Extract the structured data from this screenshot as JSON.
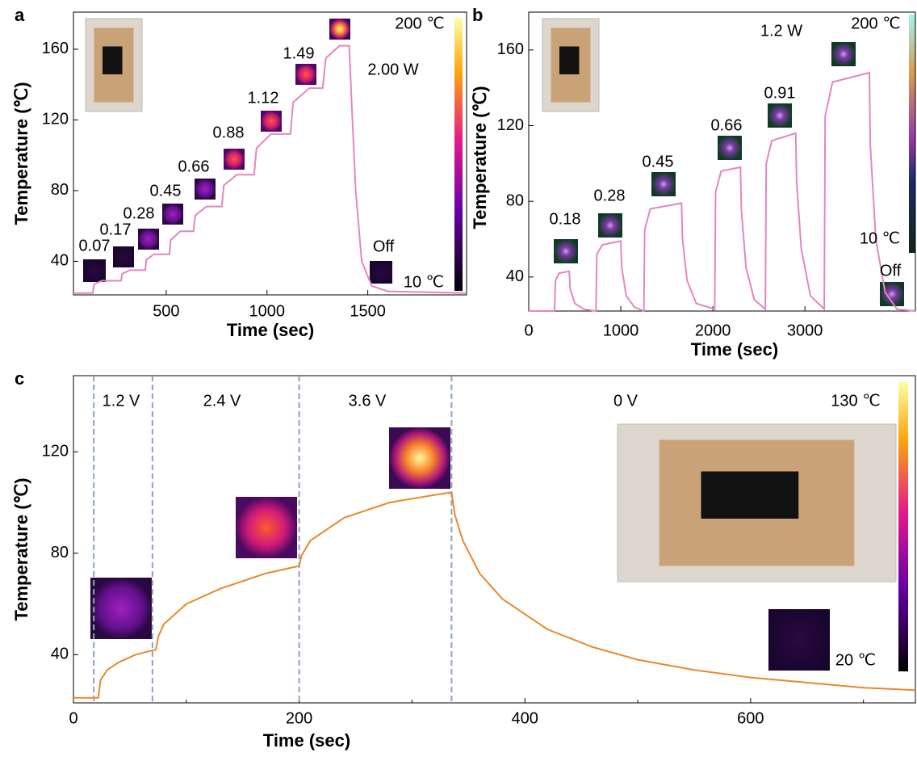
{
  "chart_data": [
    {
      "type": "line",
      "panel": "a",
      "x_label": "Time (sec)",
      "y_label": "Temperature (℃)",
      "color": "#e486bf",
      "xlim": [
        40,
        1990
      ],
      "ylim": [
        21,
        181
      ],
      "xticks": [
        500,
        1000,
        1500
      ],
      "yticks": [
        40,
        80,
        120,
        160
      ],
      "x": [
        40,
        136,
        142,
        180,
        276,
        282,
        320,
        396,
        402,
        440,
        516,
        522,
        570,
        636,
        644,
        700,
        776,
        786,
        850,
        936,
        948,
        1020,
        1116,
        1130,
        1210,
        1276,
        1292,
        1360,
        1408,
        1420,
        1440,
        1470,
        1520,
        1600,
        1990
      ],
      "values": [
        22,
        22,
        27,
        29,
        29,
        33,
        35,
        35,
        41,
        44,
        44,
        52,
        57,
        57,
        66,
        71,
        71,
        83,
        89,
        89,
        104,
        112,
        112,
        130,
        138,
        138,
        155,
        162,
        162,
        130,
        80,
        40,
        26,
        23,
        22
      ],
      "annotations": [
        "0.07",
        "0.17",
        "0.28",
        "0.45",
        "0.66",
        "0.88",
        "1.12",
        "1.49",
        "2.00 W",
        "Off",
        "200 ℃",
        "10 ℃"
      ]
    },
    {
      "type": "line",
      "panel": "b",
      "x_label": "Time (sec)",
      "y_label": "Temperature (℃)",
      "color": "#e486bf",
      "xlim": [
        0,
        4200
      ],
      "ylim": [
        22,
        180
      ],
      "xticks": [
        0,
        1000,
        2000,
        3000
      ],
      "yticks": [
        40,
        80,
        120,
        160
      ],
      "x": [
        0,
        280,
        290,
        330,
        440,
        450,
        500,
        600,
        730,
        740,
        800,
        1000,
        1010,
        1060,
        1150,
        1250,
        1260,
        1320,
        1660,
        1670,
        1720,
        1820,
        2020,
        2030,
        2090,
        2300,
        2310,
        2360,
        2450,
        2570,
        2580,
        2640,
        2900,
        2910,
        2960,
        3060,
        3210,
        3220,
        3300,
        3700,
        3710,
        3770,
        3870,
        4000,
        4200
      ],
      "values": [
        22,
        22,
        38,
        42,
        43,
        34,
        26,
        23,
        22,
        52,
        57,
        59,
        45,
        30,
        24,
        22,
        65,
        76,
        79,
        60,
        38,
        26,
        23,
        85,
        96,
        98,
        75,
        45,
        28,
        23,
        100,
        112,
        116,
        90,
        55,
        30,
        23,
        125,
        143,
        148,
        110,
        60,
        32,
        23,
        22
      ],
      "annotations": [
        "0.18",
        "0.28",
        "0.45",
        "0.66",
        "0.91",
        "1.2 W",
        "200 ℃",
        "10 ℃",
        "Off"
      ]
    },
    {
      "type": "line",
      "panel": "c",
      "x_label": "Time (sec)",
      "y_label": "Temperature (℃)",
      "color": "#e8892b",
      "xlim": [
        0,
        746
      ],
      "ylim": [
        21,
        150
      ],
      "xticks": [
        0,
        200,
        400,
        600
      ],
      "xminorticks": [
        100,
        300,
        500,
        700
      ],
      "yticks": [
        40,
        80,
        120
      ],
      "x": [
        0,
        20,
        22,
        24,
        30,
        40,
        55,
        73,
        75,
        80,
        100,
        130,
        170,
        200,
        202,
        210,
        240,
        280,
        320,
        335,
        338,
        345,
        360,
        380,
        420,
        460,
        500,
        550,
        600,
        650,
        700,
        746
      ],
      "values": [
        23,
        23,
        23,
        30,
        34,
        37,
        40,
        42,
        47,
        52,
        60,
        66,
        72,
        75,
        79,
        85,
        94,
        100,
        103,
        104,
        95,
        85,
        72,
        62,
        50,
        43,
        38,
        34,
        31,
        29,
        27,
        26
      ],
      "markers": [
        18,
        70,
        200,
        335
      ],
      "annotations": [
        "1.2 V",
        "2.4 V",
        "3.6 V",
        "0 V",
        "130 ℃",
        "20 ℃"
      ]
    }
  ]
}
